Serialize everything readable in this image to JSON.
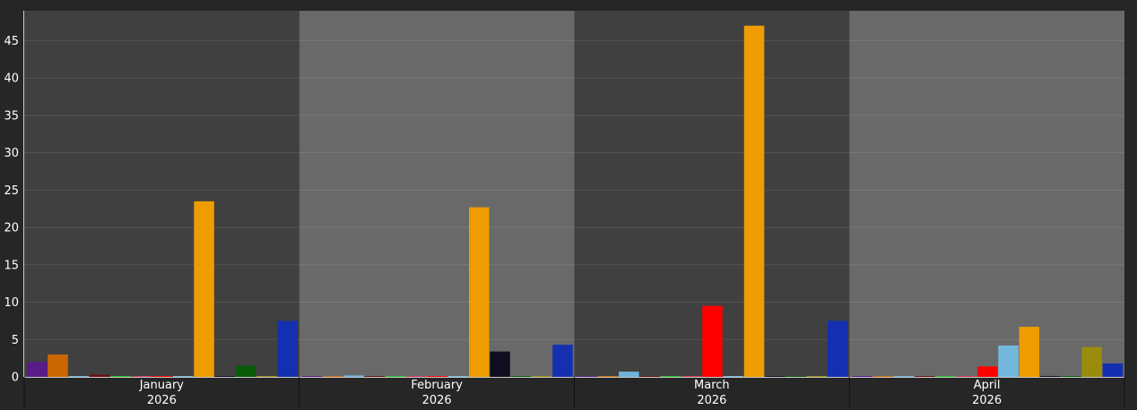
{
  "chart_data": {
    "type": "bar",
    "title": "",
    "xlabel": "",
    "ylabel": "",
    "ylim": [
      0,
      49
    ],
    "yticks": [
      0,
      5,
      10,
      15,
      20,
      25,
      30,
      35,
      40,
      45
    ],
    "grid": true,
    "legend": "none",
    "categories": [
      {
        "month": "January",
        "year": "2026"
      },
      {
        "month": "February",
        "year": "2026"
      },
      {
        "month": "March",
        "year": "2026"
      },
      {
        "month": "April",
        "year": "2026"
      }
    ],
    "series": [
      {
        "color": "#5a1a8a",
        "values": [
          2.0,
          0,
          0,
          0
        ]
      },
      {
        "color": "#cc6600",
        "values": [
          3.0,
          0,
          0,
          0
        ]
      },
      {
        "color": "#6eb4dc",
        "values": [
          0,
          0.2,
          0.7,
          0
        ]
      },
      {
        "color": "#6b1010",
        "values": [
          0.3,
          0,
          0,
          0
        ]
      },
      {
        "color": "#22c022",
        "values": [
          0,
          0,
          0,
          0
        ]
      },
      {
        "color": "#cc3355",
        "values": [
          0,
          0,
          0,
          0
        ]
      },
      {
        "color": "#ff0000",
        "values": [
          0,
          0,
          9.5,
          1.4
        ]
      },
      {
        "color": "#74b9dd",
        "values": [
          0,
          0,
          0,
          4.2
        ]
      },
      {
        "color": "#ee9c00",
        "values": [
          23.5,
          22.7,
          47.0,
          6.7
        ]
      },
      {
        "color": "#0f0f1f",
        "values": [
          0,
          3.4,
          0,
          0
        ]
      },
      {
        "color": "#0a5a0a",
        "values": [
          1.5,
          0,
          0,
          0
        ]
      },
      {
        "color": "#9a8c0a",
        "values": [
          0,
          0,
          0,
          4.0
        ]
      },
      {
        "color": "#1430b0",
        "values": [
          7.5,
          4.3,
          7.5,
          1.8
        ]
      }
    ]
  }
}
